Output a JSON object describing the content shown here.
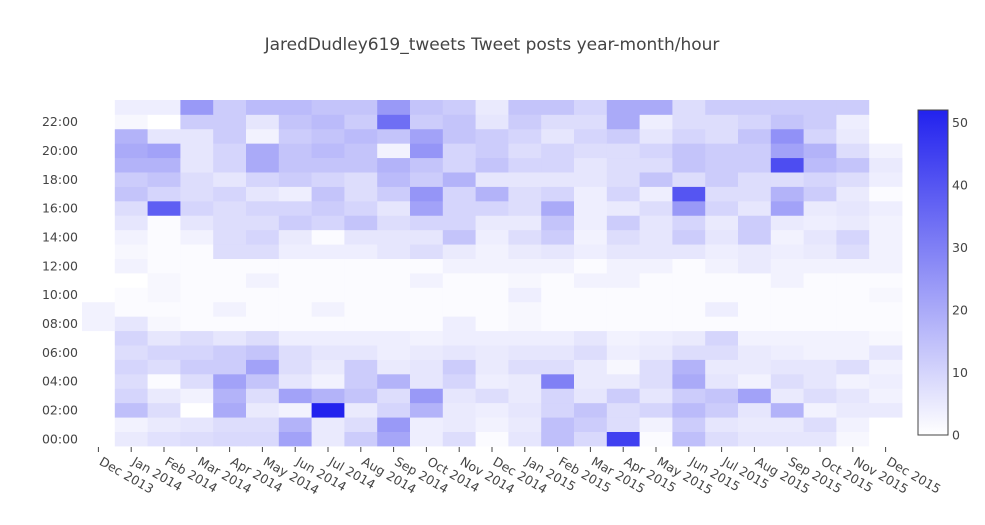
{
  "chart_data": {
    "type": "heatmap",
    "title": "JaredDudley619_tweets Tweet posts year-month/hour",
    "xlabel": "",
    "ylabel": "",
    "x_categories": [
      "Dec 2013",
      "Jan 2014",
      "Feb 2014",
      "Mar 2014",
      "Apr 2014",
      "May 2014",
      "Jun 2014",
      "Jul 2014",
      "Aug 2014",
      "Sep 2014",
      "Oct 2014",
      "Nov 2014",
      "Dec 2014",
      "Jan 2015",
      "Feb 2015",
      "Mar 2015",
      "Apr 2015",
      "May 2015",
      "Jun 2015",
      "Jul 2015",
      "Aug 2015",
      "Sep 2015",
      "Oct 2015",
      "Nov 2015",
      "Dec 2015"
    ],
    "y_categories": [
      "00:00",
      "01:00",
      "02:00",
      "03:00",
      "04:00",
      "05:00",
      "06:00",
      "07:00",
      "08:00",
      "09:00",
      "10:00",
      "11:00",
      "12:00",
      "13:00",
      "14:00",
      "15:00",
      "16:00",
      "17:00",
      "18:00",
      "19:00",
      "20:00",
      "21:00",
      "22:00",
      "23:00"
    ],
    "y_tick_labels": [
      "00:00",
      "02:00",
      "04:00",
      "06:00",
      "08:00",
      "10:00",
      "12:00",
      "14:00",
      "16:00",
      "18:00",
      "20:00",
      "22:00"
    ],
    "colorbar": {
      "min": 0,
      "max": 52,
      "ticks": [
        0,
        10,
        20,
        30,
        40,
        50
      ],
      "color_low": "#ffffff",
      "color_high": "#2222ee"
    },
    "values": [
      [
        0,
        5,
        7,
        8,
        9,
        9,
        22,
        5,
        12,
        21,
        4,
        8,
        1,
        6,
        15,
        9,
        45,
        1,
        15,
        8,
        6,
        6,
        6,
        2,
        0
      ],
      [
        0,
        3,
        5,
        6,
        8,
        8,
        18,
        5,
        8,
        24,
        4,
        5,
        3,
        5,
        15,
        12,
        8,
        3,
        12,
        6,
        5,
        5,
        8,
        3,
        0
      ],
      [
        0,
        15,
        8,
        0,
        20,
        5,
        3,
        52,
        5,
        10,
        18,
        5,
        4,
        6,
        10,
        14,
        8,
        10,
        16,
        12,
        6,
        18,
        3,
        5,
        5
      ],
      [
        0,
        10,
        5,
        3,
        18,
        8,
        22,
        18,
        14,
        8,
        24,
        6,
        8,
        5,
        10,
        6,
        12,
        6,
        12,
        14,
        22,
        5,
        8,
        6,
        3
      ],
      [
        0,
        8,
        1,
        8,
        22,
        14,
        6,
        3,
        12,
        18,
        6,
        10,
        4,
        5,
        30,
        5,
        5,
        8,
        20,
        6,
        3,
        8,
        6,
        3,
        4
      ],
      [
        0,
        10,
        8,
        12,
        12,
        22,
        8,
        5,
        12,
        5,
        6,
        12,
        5,
        8,
        8,
        5,
        2,
        8,
        18,
        5,
        5,
        6,
        6,
        8,
        3
      ],
      [
        0,
        8,
        10,
        10,
        12,
        14,
        8,
        6,
        6,
        4,
        5,
        6,
        5,
        6,
        6,
        8,
        4,
        5,
        8,
        8,
        5,
        4,
        3,
        3,
        6
      ],
      [
        0,
        10,
        6,
        8,
        6,
        8,
        4,
        4,
        4,
        4,
        3,
        4,
        4,
        4,
        4,
        6,
        3,
        4,
        5,
        10,
        3,
        3,
        3,
        3,
        2
      ],
      [
        3,
        6,
        2,
        1,
        1,
        1,
        1,
        1,
        1,
        1,
        1,
        4,
        1,
        2,
        1,
        1,
        1,
        1,
        1,
        1,
        1,
        1,
        1,
        1,
        1
      ],
      [
        3,
        1,
        1,
        1,
        3,
        1,
        1,
        3,
        1,
        1,
        1,
        1,
        1,
        2,
        1,
        1,
        1,
        1,
        1,
        4,
        1,
        1,
        1,
        1,
        1
      ],
      [
        0,
        1,
        2,
        1,
        1,
        1,
        1,
        1,
        1,
        1,
        1,
        1,
        1,
        4,
        1,
        1,
        1,
        1,
        1,
        1,
        1,
        1,
        1,
        1,
        2
      ],
      [
        0,
        0,
        2,
        1,
        1,
        3,
        1,
        1,
        1,
        1,
        3,
        1,
        1,
        2,
        1,
        3,
        3,
        1,
        1,
        1,
        1,
        3,
        1,
        1,
        1
      ],
      [
        0,
        3,
        1,
        1,
        1,
        1,
        1,
        1,
        1,
        1,
        1,
        3,
        3,
        3,
        3,
        1,
        3,
        3,
        1,
        3,
        5,
        3,
        3,
        3,
        3
      ],
      [
        0,
        2,
        1,
        1,
        8,
        8,
        4,
        4,
        4,
        6,
        8,
        5,
        3,
        5,
        6,
        4,
        6,
        6,
        6,
        4,
        5,
        4,
        5,
        8,
        3
      ],
      [
        0,
        3,
        1,
        3,
        8,
        10,
        5,
        1,
        6,
        6,
        6,
        14,
        4,
        8,
        12,
        3,
        8,
        6,
        12,
        6,
        12,
        3,
        6,
        10,
        3
      ],
      [
        0,
        6,
        1,
        6,
        8,
        8,
        12,
        10,
        14,
        8,
        10,
        10,
        5,
        5,
        14,
        4,
        12,
        6,
        10,
        5,
        12,
        5,
        4,
        5,
        3
      ],
      [
        0,
        8,
        38,
        10,
        8,
        10,
        10,
        12,
        10,
        6,
        22,
        10,
        10,
        8,
        20,
        4,
        5,
        8,
        24,
        10,
        6,
        22,
        5,
        6,
        4
      ],
      [
        0,
        14,
        10,
        8,
        10,
        6,
        4,
        14,
        8,
        12,
        25,
        10,
        18,
        8,
        10,
        4,
        10,
        4,
        40,
        8,
        8,
        18,
        12,
        5,
        1
      ],
      [
        0,
        12,
        14,
        8,
        6,
        10,
        12,
        10,
        8,
        16,
        12,
        18,
        6,
        6,
        6,
        6,
        8,
        14,
        8,
        12,
        8,
        8,
        10,
        8,
        4
      ],
      [
        0,
        18,
        18,
        6,
        10,
        20,
        14,
        14,
        14,
        18,
        14,
        10,
        14,
        10,
        10,
        6,
        8,
        8,
        14,
        12,
        12,
        42,
        16,
        14,
        5
      ],
      [
        0,
        20,
        22,
        6,
        10,
        20,
        14,
        16,
        14,
        3,
        25,
        10,
        12,
        8,
        10,
        8,
        8,
        10,
        14,
        12,
        12,
        22,
        18,
        8,
        3
      ],
      [
        0,
        18,
        6,
        6,
        12,
        3,
        12,
        14,
        16,
        14,
        22,
        14,
        12,
        10,
        6,
        10,
        12,
        6,
        10,
        8,
        14,
        26,
        10,
        5,
        0
      ],
      [
        0,
        2,
        0,
        12,
        12,
        6,
        14,
        16,
        12,
        34,
        12,
        14,
        6,
        12,
        8,
        8,
        20,
        4,
        8,
        8,
        10,
        14,
        12,
        4,
        0
      ],
      [
        0,
        4,
        4,
        24,
        12,
        16,
        16,
        14,
        14,
        24,
        14,
        12,
        5,
        14,
        14,
        10,
        20,
        20,
        8,
        12,
        12,
        12,
        12,
        12,
        0
      ]
    ]
  }
}
